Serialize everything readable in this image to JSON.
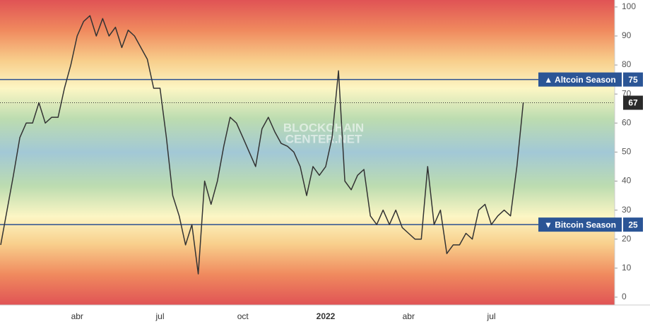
{
  "chart_data": {
    "type": "line",
    "categories": [
      null,
      null,
      null,
      null,
      null,
      null,
      null,
      null,
      null,
      null,
      null,
      null,
      "abr",
      null,
      null,
      null,
      null,
      null,
      null,
      null,
      null,
      null,
      null,
      null,
      null,
      "jul",
      null,
      null,
      null,
      null,
      null,
      null,
      null,
      null,
      null,
      null,
      null,
      null,
      "oct",
      null,
      null,
      null,
      null,
      null,
      null,
      null,
      null,
      null,
      null,
      null,
      null,
      "2022",
      null,
      null,
      null,
      null,
      null,
      null,
      null,
      null,
      null,
      null,
      null,
      null,
      "abr",
      null,
      null,
      null,
      null,
      null,
      null,
      null,
      null,
      null,
      null,
      null,
      null,
      "jul",
      null,
      null,
      null,
      null,
      null
    ],
    "series": [
      {
        "color": "#333333",
        "values": [
          18,
          30,
          42,
          55,
          60,
          60,
          67,
          60,
          62,
          62,
          72,
          80,
          90,
          95,
          97,
          90,
          96,
          90,
          93,
          86,
          92,
          90,
          86,
          82,
          72,
          72,
          55,
          35,
          28,
          18,
          25,
          8,
          40,
          32,
          40,
          52,
          62,
          60,
          55,
          50,
          45,
          58,
          62,
          57,
          53,
          52,
          50,
          45,
          35,
          45,
          42,
          45,
          55,
          78,
          40,
          37,
          42,
          44,
          28,
          25,
          30,
          25,
          30,
          24,
          22,
          20,
          20,
          45,
          25,
          30,
          15,
          18,
          18,
          22,
          20,
          30,
          32,
          25,
          28,
          30,
          28,
          45,
          67
        ]
      }
    ],
    "ylim": [
      -2.7,
      102.4
    ],
    "yticks": [
      0,
      10,
      20,
      30,
      40,
      50,
      60,
      70,
      80,
      90,
      100
    ],
    "thresholds": [
      {
        "label": "▲ Altcoin Season",
        "value": 75
      },
      {
        "label": "▼ Bitcoin Season",
        "value": 25
      }
    ],
    "watermark": [
      "BLOCKCHAIN",
      "CENTER.NET"
    ]
  }
}
